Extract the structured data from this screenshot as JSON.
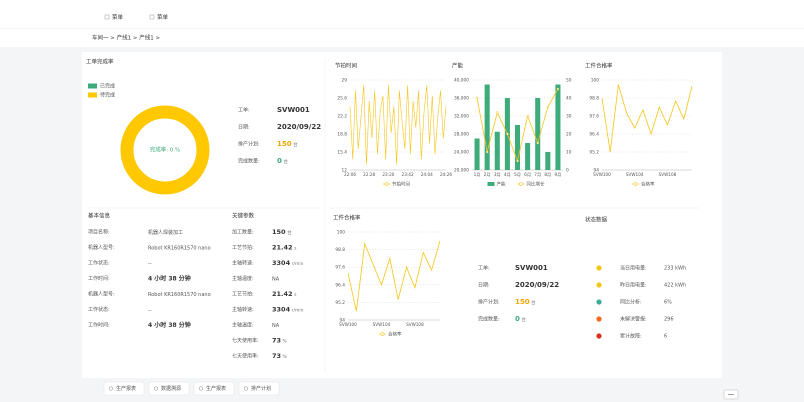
{
  "menu": [
    "菜单",
    "菜单"
  ],
  "breadcrumb": "车间一 > 产线1 > 产线1 >",
  "order_panel": {
    "title": "工单完成率",
    "legend": [
      {
        "name": "已完成",
        "color": "#3dab7a"
      },
      {
        "name": "待完成",
        "color": "#ffc800"
      }
    ],
    "donut": {
      "values": [
        0,
        100
      ],
      "center_label": "完成率: 0 %"
    },
    "info": [
      {
        "label": "工单:",
        "value": "SVW001"
      },
      {
        "label": "日期:",
        "value": "2020/09/22"
      },
      {
        "label": "排产计划:",
        "value": "150",
        "unit": "台",
        "color": "#f0a500"
      },
      {
        "label": "完成数量:",
        "value": "0",
        "unit": "台",
        "color": "#3dab7a"
      }
    ]
  },
  "basic_info": {
    "title": "基本信息",
    "rows": [
      {
        "label": "项目名称:",
        "value": "机器人焊装加工"
      },
      {
        "label": "机器人型号:",
        "value": "Robot KR160R1570 nano"
      },
      {
        "label": "工作状态:",
        "value": "--"
      },
      {
        "label": "工作时间:",
        "value": "4 小时 38 分钟"
      },
      {
        "label": "机器人型号:",
        "value": "Robot KR160R1570 nano"
      },
      {
        "label": "工作状态:",
        "value": "--"
      },
      {
        "label": "工作时间:",
        "value": "4 小时 38 分钟"
      }
    ]
  },
  "key_params": {
    "title": "关键参数",
    "rows": [
      {
        "label": "加工数量:",
        "value": "150",
        "unit": "台"
      },
      {
        "label": "工艺节拍:",
        "value": "21.42",
        "unit": "s"
      },
      {
        "label": "主轴转速:",
        "value": "3304",
        "unit": "r/min"
      },
      {
        "label": "主轴温度:",
        "value": "NA"
      },
      {
        "label": "工艺节拍:",
        "value": "21.42",
        "unit": "s"
      },
      {
        "label": "主轴转速:",
        "value": "3304",
        "unit": "r/min"
      },
      {
        "label": "主轴温度:",
        "value": "NA"
      },
      {
        "label": "七天使用率:",
        "value": "73",
        "unit": "%"
      },
      {
        "label": "七天使用率:",
        "value": "73",
        "unit": "%"
      }
    ]
  },
  "charts": [
    {
      "type": "line",
      "title": "节拍时间",
      "categories": [
        "22:06",
        null,
        null,
        null,
        null,
        null,
        null,
        "22:28",
        null,
        null,
        null,
        null,
        null,
        null,
        "23:20",
        null,
        null,
        null,
        null,
        null,
        null,
        "23:42",
        null,
        null,
        null,
        null,
        null,
        null,
        "24:04",
        null,
        null,
        null,
        null,
        null,
        null,
        "24:26"
      ],
      "series": [
        {
          "name": "节拍时间",
          "color": "#f5c518",
          "values": [
            24,
            14,
            27,
            16,
            22,
            28,
            13,
            25,
            18,
            27,
            15,
            23,
            26,
            14,
            28,
            19,
            24,
            13,
            27,
            21,
            16,
            28,
            15,
            25,
            20,
            27,
            14,
            23,
            28,
            17,
            26,
            15,
            22,
            27,
            18,
            24
          ]
        }
      ],
      "ylim": [
        12,
        29
      ],
      "yticks": [
        12,
        15.4,
        18.8,
        22.2,
        25.6,
        29
      ]
    },
    {
      "type": "bar",
      "title": "产能",
      "categories": [
        "1月",
        "2月",
        "3月",
        "4月",
        "5月",
        "6月",
        "7月",
        "8月",
        "9月"
      ],
      "series": [
        {
          "name": "产能",
          "color": "#3dab7a",
          "values": [
            27000,
            39000,
            28500,
            36000,
            30000,
            26000,
            36000,
            24000,
            39000
          ]
        },
        {
          "name": "同比增长",
          "color": "#f5c518",
          "axis": "y2",
          "values": [
            40,
            10,
            32,
            20,
            5,
            30,
            15,
            35,
            45
          ]
        }
      ],
      "ylim": [
        20000,
        40000
      ],
      "yticks": [
        {
          "value": 20000,
          "label": "20,000"
        },
        {
          "value": 24000,
          "label": "24,000"
        },
        {
          "value": 28000,
          "label": "28,000"
        },
        {
          "value": 32000,
          "label": "32,000"
        },
        {
          "value": 36000,
          "label": "36,000"
        },
        {
          "value": 40000,
          "label": "40,000"
        }
      ],
      "y2lim": [
        0,
        50
      ],
      "y2ticks": [
        0,
        10,
        20,
        30,
        40,
        50
      ]
    },
    {
      "type": "line",
      "title": "工件合格率",
      "categories": [
        "SVW100",
        null,
        null,
        null,
        "SVW104",
        null,
        null,
        null,
        "SVW108",
        null,
        null,
        null
      ],
      "series": [
        {
          "name": "合格率",
          "color": "#f5c518",
          "values": [
            98.8,
            95.2,
            99.7,
            97.8,
            96.8,
            98.0,
            96.4,
            98.2,
            97.0,
            98.6,
            97.4,
            99.6
          ]
        }
      ],
      "ylim": [
        94,
        100
      ],
      "yticks": [
        94,
        95.2,
        96.4,
        97.6,
        98.8,
        100
      ]
    },
    {
      "type": "line",
      "title": "工件合格率",
      "categories": [
        "SVW100",
        null,
        null,
        null,
        "SVW104",
        null,
        null,
        null,
        "SVW108",
        null,
        null,
        null
      ],
      "series": [
        {
          "name": "合格率",
          "color": "#f5c518",
          "values": [
            97.2,
            94.6,
            99.2,
            97.8,
            96.4,
            98.2,
            95.4,
            97.6,
            96.2,
            98.6,
            97.4,
            99.4
          ]
        }
      ],
      "ylim": [
        94,
        100
      ],
      "yticks": [
        94,
        95.2,
        96.4,
        97.6,
        98.8,
        100
      ]
    }
  ],
  "order_info_2": [
    {
      "label": "工单:",
      "value": "SVW001"
    },
    {
      "label": "日期:",
      "value": "2020/09/22"
    },
    {
      "label": "排产计划:",
      "value": "150",
      "unit": "台",
      "color": "#f0a500"
    },
    {
      "label": "完成数量:",
      "value": "0",
      "unit": "台",
      "color": "#3dab7a"
    }
  ],
  "status": {
    "title": "状态数据",
    "items": [
      {
        "label": "当日用电量:",
        "value": "233 kWh",
        "color": "#f5c518"
      },
      {
        "label": "昨日用电量:",
        "value": "422 kWh",
        "color": "#f5c518"
      },
      {
        "label": "同比分析:",
        "value": "6%",
        "color": "#3dab9a"
      },
      {
        "label": "未解决警报:",
        "value": "296",
        "color": "#f06a1a"
      },
      {
        "label": "累计故障:",
        "value": "6",
        "color": "#d9301e"
      }
    ]
  },
  "buttons": [
    "生产报表",
    "数据溯源",
    "生产报表",
    "排产计划"
  ]
}
